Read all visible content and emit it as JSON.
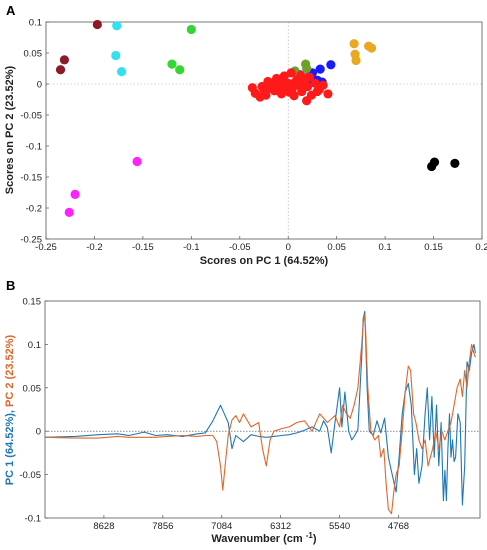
{
  "chart_data": [
    {
      "panel_label": "A",
      "type": "scatter",
      "xlabel": "Scores on PC 1 (64.52%)",
      "ylabel": "Scores on PC 2 (23.52%)",
      "xlim": [
        -0.25,
        0.2
      ],
      "ylim": [
        -0.25,
        0.1
      ],
      "xticks": [
        "-0.25",
        "-0.2",
        "-0.15",
        "-0.1",
        "-0.05",
        "0",
        "0.05",
        "0.1",
        "0.15",
        "0.2"
      ],
      "yticks": [
        "0.1",
        "0.05",
        "0",
        "-0.05",
        "-0.1",
        "-0.15",
        "-0.2",
        "-0.25"
      ],
      "zero_lines": true,
      "series": [
        {
          "color": "#8b1a2b",
          "points": [
            [
              -0.197,
              0.096
            ],
            [
              -0.231,
              0.039
            ],
            [
              -0.235,
              0.023
            ]
          ]
        },
        {
          "color": "#33e0f0",
          "points": [
            [
              -0.177,
              0.094
            ],
            [
              -0.178,
              0.046
            ],
            [
              -0.172,
              0.02
            ]
          ]
        },
        {
          "color": "#33d633",
          "points": [
            [
              -0.1,
              0.088
            ],
            [
              -0.12,
              0.032
            ],
            [
              -0.112,
              0.023
            ]
          ]
        },
        {
          "color": "#ff22ff",
          "points": [
            [
              -0.156,
              -0.125
            ],
            [
              -0.22,
              -0.178
            ],
            [
              -0.226,
              -0.207
            ]
          ]
        },
        {
          "color": "#000000",
          "points": [
            [
              0.148,
              -0.133
            ],
            [
              0.151,
              -0.126
            ],
            [
              0.172,
              -0.128
            ]
          ]
        },
        {
          "color": "#e8a820",
          "points": [
            [
              0.068,
              0.065
            ],
            [
              0.083,
              0.061
            ],
            [
              0.086,
              0.058
            ],
            [
              0.069,
              0.048
            ],
            [
              0.07,
              0.038
            ]
          ]
        },
        {
          "color": "#1a1aff",
          "points": [
            [
              0.044,
              0.031
            ],
            [
              0.033,
              0.024
            ],
            [
              0.023,
              0.015
            ],
            [
              0.03,
              0.006
            ],
            [
              0.027,
              0.002
            ],
            [
              0.02,
              0.002
            ],
            [
              0.035,
              0.003
            ],
            [
              0.012,
              0.015
            ],
            [
              0.025,
              0.018
            ]
          ]
        },
        {
          "color": "#6aa22a",
          "points": [
            [
              0.018,
              0.032
            ],
            [
              0.019,
              0.025
            ],
            [
              0.007,
              0.021
            ],
            [
              0.015,
              0.011
            ]
          ]
        },
        {
          "color": "#ff1a1a",
          "points": [
            [
              -0.037,
              -0.006
            ],
            [
              -0.034,
              -0.015
            ],
            [
              -0.027,
              -0.004
            ],
            [
              -0.023,
              -0.018
            ],
            [
              -0.018,
              -0.007
            ],
            [
              -0.014,
              -0.011
            ],
            [
              -0.01,
              -0.003
            ],
            [
              -0.007,
              -0.016
            ],
            [
              -0.003,
              -0.006
            ],
            [
              0.0,
              0.001
            ],
            [
              0.004,
              -0.009
            ],
            [
              0.007,
              0.003
            ],
            [
              0.011,
              -0.002
            ],
            [
              0.014,
              -0.012
            ],
            [
              0.017,
              0.006
            ],
            [
              0.02,
              -0.004
            ],
            [
              0.024,
              -0.018
            ],
            [
              0.028,
              0.001
            ],
            [
              0.032,
              -0.009
            ],
            [
              0.036,
              -0.002
            ],
            [
              0.041,
              -0.016
            ],
            [
              -0.021,
              0.004
            ],
            [
              -0.012,
              0.009
            ],
            [
              -0.004,
              0.013
            ],
            [
              0.003,
              0.018
            ],
            [
              0.009,
              0.007
            ],
            [
              0.019,
              -0.027
            ],
            [
              -0.029,
              -0.021
            ],
            [
              0.001,
              -0.013
            ],
            [
              0.013,
              0.014
            ],
            [
              -0.016,
              0.001
            ],
            [
              0.022,
              0.011
            ],
            [
              0.006,
              -0.019
            ],
            [
              -0.008,
              0.005
            ],
            [
              0.03,
              -0.012
            ],
            [
              -0.025,
              -0.009
            ]
          ]
        }
      ]
    },
    {
      "panel_label": "B",
      "type": "line",
      "xlabel": "Wavenumber (cm ",
      "xlabel_sup": "-1",
      "xlabel_end": ")",
      "ylabel_parts": [
        {
          "text": "PC 1 (64.52%)",
          "color": "#1f77b4"
        },
        {
          "text": ", ",
          "color": "#1f77b4"
        },
        {
          "text": "PC 2 (23.52%)",
          "color": "#e0662a"
        }
      ],
      "xlim": [
        9400,
        3700
      ],
      "ylim": [
        -0.1,
        0.15
      ],
      "xticks": [
        "8628",
        "7856",
        "7084",
        "6312",
        "5540",
        "4768"
      ],
      "yticks": [
        "0.15",
        "0.1",
        "0.05",
        "0",
        "-0.05",
        "-0.1"
      ],
      "zero_line": true,
      "series": [
        {
          "color": "#1f77b4",
          "points": [
            [
              9400,
              -0.007
            ],
            [
              9000,
              -0.006
            ],
            [
              8700,
              -0.004
            ],
            [
              8450,
              -0.003
            ],
            [
              8300,
              -0.005
            ],
            [
              8100,
              -0.001
            ],
            [
              7950,
              -0.005
            ],
            [
              7800,
              -0.004
            ],
            [
              7600,
              -0.006
            ],
            [
              7400,
              -0.003
            ],
            [
              7300,
              -0.002
            ],
            [
              7200,
              0.012
            ],
            [
              7100,
              0.03
            ],
            [
              7050,
              0.02
            ],
            [
              7000,
              0.01
            ],
            [
              6950,
              -0.02
            ],
            [
              6900,
              -0.005
            ],
            [
              6800,
              -0.012
            ],
            [
              6700,
              -0.004
            ],
            [
              6600,
              -0.006
            ],
            [
              6500,
              -0.007
            ],
            [
              6400,
              -0.006
            ],
            [
              6300,
              -0.005
            ],
            [
              6200,
              -0.004
            ],
            [
              6100,
              -0.002
            ],
            [
              6000,
              0.001
            ],
            [
              5900,
              0.005
            ],
            [
              5800,
              0.0
            ],
            [
              5750,
              0.012
            ],
            [
              5700,
              0.004
            ],
            [
              5650,
              -0.025
            ],
            [
              5600,
              0.01
            ],
            [
              5540,
              0.05
            ],
            [
              5510,
              0.005
            ],
            [
              5470,
              0.045
            ],
            [
              5420,
              0.0
            ],
            [
              5380,
              -0.01
            ],
            [
              5340,
              -0.005
            ],
            [
              5300,
              0.002
            ],
            [
              5250,
              0.085
            ],
            [
              5230,
              0.13
            ],
            [
              5210,
              0.138
            ],
            [
              5180,
              0.05
            ],
            [
              5150,
              0.0
            ],
            [
              5100,
              -0.005
            ],
            [
              5050,
              0.012
            ],
            [
              5000,
              -0.002
            ],
            [
              4950,
              0.015
            ],
            [
              4900,
              -0.03
            ],
            [
              4850,
              -0.05
            ],
            [
              4800,
              -0.07
            ],
            [
              4760,
              -0.03
            ],
            [
              4720,
              0.02
            ],
            [
              4680,
              0.045
            ],
            [
              4640,
              0.055
            ],
            [
              4600,
              0.03
            ],
            [
              4560,
              -0.05
            ],
            [
              4530,
              -0.02
            ],
            [
              4500,
              -0.06
            ],
            [
              4460,
              -0.04
            ],
            [
              4420,
              0.02
            ],
            [
              4390,
              0.05
            ],
            [
              4360,
              -0.01
            ],
            [
              4330,
              0.04
            ],
            [
              4300,
              -0.03
            ],
            [
              4270,
              0.03
            ],
            [
              4240,
              -0.04
            ],
            [
              4210,
              0.01
            ],
            [
              4180,
              -0.08
            ],
            [
              4160,
              -0.045
            ],
            [
              4140,
              -0.08
            ],
            [
              4120,
              -0.02
            ],
            [
              4100,
              0.02
            ],
            [
              4080,
              -0.03
            ],
            [
              4060,
              -0.01
            ],
            [
              4040,
              -0.035
            ],
            [
              4020,
              -0.03
            ],
            [
              3990,
              0.02
            ],
            [
              3960,
              0.01
            ],
            [
              3930,
              -0.085
            ],
            [
              3900,
              -0.04
            ],
            [
              3870,
              0.08
            ],
            [
              3840,
              0.07
            ],
            [
              3810,
              0.09
            ],
            [
              3780,
              0.1
            ],
            [
              3760,
              0.09
            ]
          ]
        },
        {
          "color": "#e0662a",
          "points": [
            [
              9400,
              -0.007
            ],
            [
              9000,
              -0.008
            ],
            [
              8700,
              -0.008
            ],
            [
              8450,
              -0.006
            ],
            [
              8300,
              -0.007
            ],
            [
              8100,
              -0.007
            ],
            [
              7950,
              -0.007
            ],
            [
              7800,
              -0.006
            ],
            [
              7600,
              -0.005
            ],
            [
              7400,
              -0.006
            ],
            [
              7300,
              -0.005
            ],
            [
              7200,
              -0.005
            ],
            [
              7150,
              -0.012
            ],
            [
              7100,
              -0.04
            ],
            [
              7070,
              -0.068
            ],
            [
              7040,
              -0.04
            ],
            [
              7000,
              -0.005
            ],
            [
              6950,
              0.013
            ],
            [
              6900,
              0.018
            ],
            [
              6850,
              0.01
            ],
            [
              6800,
              0.02
            ],
            [
              6700,
              0.005
            ],
            [
              6600,
              0.01
            ],
            [
              6550,
              -0.02
            ],
            [
              6500,
              -0.04
            ],
            [
              6450,
              -0.01
            ],
            [
              6400,
              0.0
            ],
            [
              6300,
              0.003
            ],
            [
              6200,
              0.005
            ],
            [
              6100,
              0.01
            ],
            [
              6000,
              0.012
            ],
            [
              5900,
              0.0
            ],
            [
              5800,
              0.02
            ],
            [
              5700,
              0.01
            ],
            [
              5600,
              0.018
            ],
            [
              5540,
              0.005
            ],
            [
              5500,
              0.03
            ],
            [
              5450,
              0.02
            ],
            [
              5400,
              0.015
            ],
            [
              5350,
              0.03
            ],
            [
              5300,
              0.05
            ],
            [
              5250,
              0.1
            ],
            [
              5220,
              0.135
            ],
            [
              5200,
              0.12
            ],
            [
              5170,
              0.05
            ],
            [
              5130,
              0.0
            ],
            [
              5080,
              -0.01
            ],
            [
              5030,
              -0.005
            ],
            [
              5000,
              -0.03
            ],
            [
              4960,
              -0.02
            ],
            [
              4930,
              -0.06
            ],
            [
              4900,
              -0.09
            ],
            [
              4860,
              -0.095
            ],
            [
              4830,
              -0.07
            ],
            [
              4800,
              -0.05
            ],
            [
              4760,
              -0.04
            ],
            [
              4720,
              0.0
            ],
            [
              4680,
              0.045
            ],
            [
              4640,
              0.075
            ],
            [
              4610,
              0.07
            ],
            [
              4570,
              0.02
            ],
            [
              4540,
              0.01
            ],
            [
              4500,
              -0.01
            ],
            [
              4460,
              -0.02
            ],
            [
              4420,
              -0.01
            ],
            [
              4380,
              -0.04
            ],
            [
              4350,
              -0.03
            ],
            [
              4320,
              -0.02
            ],
            [
              4280,
              0.0
            ],
            [
              4240,
              -0.02
            ],
            [
              4200,
              0.0
            ],
            [
              4160,
              -0.01
            ],
            [
              4120,
              0.0
            ],
            [
              4080,
              0.01
            ],
            [
              4040,
              0.03
            ],
            [
              4000,
              0.05
            ],
            [
              3960,
              0.06
            ],
            [
              3930,
              0.04
            ],
            [
              3900,
              0.07
            ],
            [
              3870,
              0.05
            ],
            [
              3840,
              0.08
            ],
            [
              3810,
              0.1
            ],
            [
              3780,
              0.09
            ],
            [
              3760,
              0.085
            ]
          ]
        }
      ]
    }
  ]
}
